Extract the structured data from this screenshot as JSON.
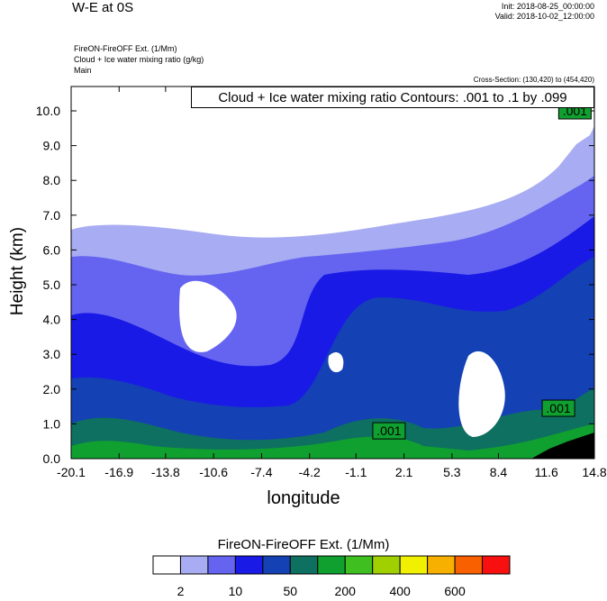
{
  "header": {
    "title": "W-E at 0S",
    "init": "Init: 2018-08-25_00:00:00",
    "valid": "Valid: 2018-10-02_12:00:00",
    "sub1": "FireON-FireOFF Ext.   (1/Mm)",
    "sub2": "Cloud + Ice water mixing ratio   (g/kg)",
    "sub3": "Main",
    "cross_section": "Cross-Section: (130,420) to (454,420)",
    "contour_info": "Cloud + Ice water mixing ratio Contours: .001 to .1 by .099"
  },
  "chart_data": {
    "type": "heatmap",
    "xlabel": "longitude",
    "ylabel": "Height (km)",
    "x_ticks": [
      "-20.1",
      "-16.9",
      "-13.8",
      "-10.6",
      "-7.4",
      "-4.2",
      "-1.1",
      "2.1",
      "5.3",
      "8.4",
      "11.6",
      "14.8"
    ],
    "y_ticks": [
      "0.0",
      "1.0",
      "2.0",
      "3.0",
      "4.0",
      "5.0",
      "6.0",
      "7.0",
      "8.0",
      "9.0",
      "10.0"
    ],
    "xlim": [
      -20.1,
      14.8
    ],
    "ylim": [
      0.0,
      10.7
    ],
    "contour_labels": [
      ".001",
      ".001",
      ".001"
    ],
    "colorbar": {
      "title": "FireON-FireOFF Ext.  (1/Mm)",
      "labels": [
        "2",
        "10",
        "50",
        "200",
        "400",
        "600"
      ],
      "colors": [
        "#ffffff",
        "#a8acf2",
        "#6464f0",
        "#1a1ae6",
        "#1441b4",
        "#0e7060",
        "#10a030",
        "#40bf20",
        "#a0d000",
        "#f0f000",
        "#f8b000",
        "#f86000",
        "#f81010"
      ]
    }
  }
}
